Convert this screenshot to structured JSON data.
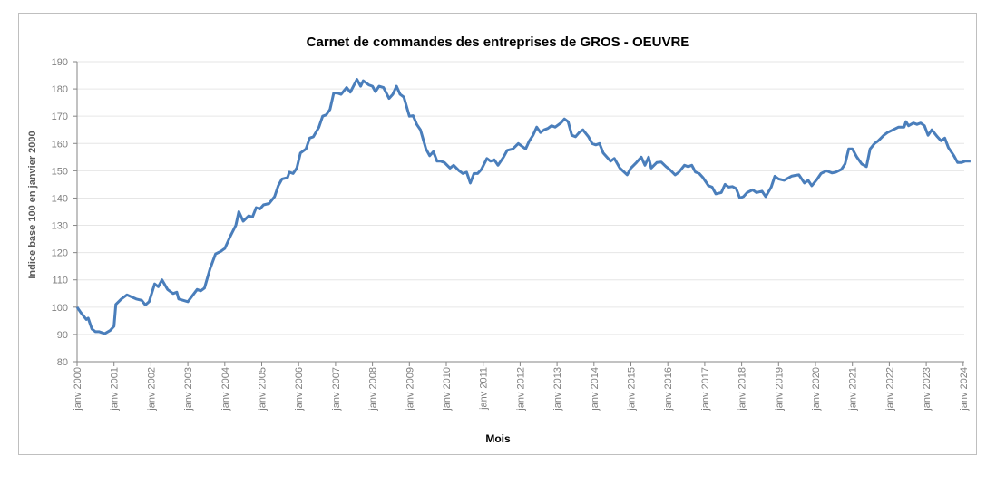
{
  "chart_data": {
    "type": "line",
    "title": "Carnet de commandes des entreprises de GROS - OEUVRE",
    "xlabel": "Mois",
    "ylabel": "Indice base 100 en janvier 2000",
    "ylim": [
      80,
      190
    ],
    "yticks": [
      80,
      90,
      100,
      110,
      120,
      130,
      140,
      150,
      160,
      170,
      180,
      190
    ],
    "xlim": [
      2000,
      2024.2
    ],
    "xtick_labels": [
      "janv 2000",
      "janv 2001",
      "janv 2002",
      "janv 2003",
      "janv 2004",
      "janv 2005",
      "janv 2006",
      "janv 2007",
      "janv 2008",
      "janv 2009",
      "janv 2010",
      "janv 2011",
      "janv 2012",
      "janv 2013",
      "janv 2014",
      "janv 2015",
      "janv 2016",
      "janv 2017",
      "janv 2018",
      "janv 2019",
      "janv 2020",
      "janv 2021",
      "janv 2022",
      "janv 2023",
      "janv 2024"
    ],
    "grid": true,
    "legend": "none",
    "color": "#4a7ebb",
    "series": [
      {
        "name": "Carnet de commandes",
        "points": [
          [
            2000.0,
            100
          ],
          [
            2000.1,
            98
          ],
          [
            2000.25,
            95.5
          ],
          [
            2000.3,
            96
          ],
          [
            2000.4,
            92
          ],
          [
            2000.5,
            91
          ],
          [
            2000.6,
            91
          ],
          [
            2000.75,
            90.3
          ],
          [
            2000.9,
            91.5
          ],
          [
            2001.0,
            93
          ],
          [
            2001.05,
            101
          ],
          [
            2001.2,
            103
          ],
          [
            2001.35,
            104.5
          ],
          [
            2001.6,
            103
          ],
          [
            2001.75,
            102.5
          ],
          [
            2001.85,
            100.8
          ],
          [
            2001.95,
            102
          ],
          [
            2002.1,
            108.5
          ],
          [
            2002.2,
            107.5
          ],
          [
            2002.3,
            110
          ],
          [
            2002.45,
            106.5
          ],
          [
            2002.6,
            105
          ],
          [
            2002.7,
            105.5
          ],
          [
            2002.75,
            103
          ],
          [
            2003.0,
            102
          ],
          [
            2003.25,
            106.5
          ],
          [
            2003.35,
            106
          ],
          [
            2003.45,
            107
          ],
          [
            2003.6,
            114
          ],
          [
            2003.75,
            119.5
          ],
          [
            2003.9,
            120.5
          ],
          [
            2004.0,
            121.5
          ],
          [
            2004.15,
            126
          ],
          [
            2004.3,
            130
          ],
          [
            2004.38,
            135
          ],
          [
            2004.5,
            131.5
          ],
          [
            2004.65,
            133.5
          ],
          [
            2004.75,
            133
          ],
          [
            2004.85,
            136.5
          ],
          [
            2004.95,
            136
          ],
          [
            2005.05,
            137.5
          ],
          [
            2005.2,
            138
          ],
          [
            2005.35,
            140.5
          ],
          [
            2005.45,
            144.5
          ],
          [
            2005.55,
            147
          ],
          [
            2005.7,
            147.5
          ],
          [
            2005.75,
            149.5
          ],
          [
            2005.85,
            149
          ],
          [
            2005.95,
            151
          ],
          [
            2006.05,
            156.5
          ],
          [
            2006.2,
            158
          ],
          [
            2006.3,
            162
          ],
          [
            2006.4,
            162.5
          ],
          [
            2006.55,
            166
          ],
          [
            2006.65,
            170
          ],
          [
            2006.75,
            170.5
          ],
          [
            2006.85,
            172.5
          ],
          [
            2006.95,
            178.5
          ],
          [
            2007.05,
            178.5
          ],
          [
            2007.15,
            178
          ],
          [
            2007.3,
            180.5
          ],
          [
            2007.4,
            178.8
          ],
          [
            2007.58,
            183.5
          ],
          [
            2007.68,
            181
          ],
          [
            2007.75,
            183
          ],
          [
            2007.9,
            181.5
          ],
          [
            2008.0,
            181
          ],
          [
            2008.08,
            179
          ],
          [
            2008.18,
            181
          ],
          [
            2008.3,
            180.5
          ],
          [
            2008.45,
            176.5
          ],
          [
            2008.55,
            178
          ],
          [
            2008.65,
            181
          ],
          [
            2008.75,
            178
          ],
          [
            2008.85,
            177
          ],
          [
            2009.0,
            170
          ],
          [
            2009.1,
            170.2
          ],
          [
            2009.2,
            167
          ],
          [
            2009.3,
            165
          ],
          [
            2009.45,
            158
          ],
          [
            2009.55,
            155.5
          ],
          [
            2009.65,
            157
          ],
          [
            2009.75,
            153.5
          ],
          [
            2009.85,
            153.5
          ],
          [
            2009.95,
            153
          ],
          [
            2010.1,
            151
          ],
          [
            2010.2,
            152
          ],
          [
            2010.35,
            150
          ],
          [
            2010.45,
            149
          ],
          [
            2010.55,
            149.5
          ],
          [
            2010.65,
            145.5
          ],
          [
            2010.75,
            149
          ],
          [
            2010.85,
            149
          ],
          [
            2010.95,
            150.5
          ],
          [
            2011.1,
            154.5
          ],
          [
            2011.2,
            153.5
          ],
          [
            2011.3,
            154
          ],
          [
            2011.4,
            152
          ],
          [
            2011.55,
            155
          ],
          [
            2011.65,
            157.5
          ],
          [
            2011.8,
            158
          ],
          [
            2011.95,
            160
          ],
          [
            2012.05,
            159
          ],
          [
            2012.15,
            158
          ],
          [
            2012.25,
            161
          ],
          [
            2012.35,
            163
          ],
          [
            2012.45,
            166
          ],
          [
            2012.55,
            164
          ],
          [
            2012.65,
            165
          ],
          [
            2012.75,
            165.5
          ],
          [
            2012.85,
            166.5
          ],
          [
            2012.95,
            166
          ],
          [
            2013.1,
            167.5
          ],
          [
            2013.2,
            169
          ],
          [
            2013.3,
            168
          ],
          [
            2013.4,
            163
          ],
          [
            2013.5,
            162.5
          ],
          [
            2013.6,
            164
          ],
          [
            2013.7,
            165
          ],
          [
            2013.85,
            162.5
          ],
          [
            2013.95,
            160
          ],
          [
            2014.05,
            159.5
          ],
          [
            2014.15,
            160
          ],
          [
            2014.25,
            156.5
          ],
          [
            2014.35,
            155
          ],
          [
            2014.45,
            153.5
          ],
          [
            2014.55,
            154.5
          ],
          [
            2014.7,
            151
          ],
          [
            2014.9,
            148.5
          ],
          [
            2015.0,
            151
          ],
          [
            2015.15,
            153
          ],
          [
            2015.28,
            155
          ],
          [
            2015.38,
            152
          ],
          [
            2015.48,
            155
          ],
          [
            2015.55,
            151
          ],
          [
            2015.7,
            153
          ],
          [
            2015.82,
            153.2
          ],
          [
            2015.95,
            151.5
          ],
          [
            2016.05,
            150.5
          ],
          [
            2016.2,
            148.5
          ],
          [
            2016.3,
            149.5
          ],
          [
            2016.45,
            152
          ],
          [
            2016.55,
            151.5
          ],
          [
            2016.65,
            152
          ],
          [
            2016.75,
            149.5
          ],
          [
            2016.85,
            149
          ],
          [
            2016.95,
            147.5
          ],
          [
            2017.1,
            144.5
          ],
          [
            2017.2,
            144
          ],
          [
            2017.3,
            141.5
          ],
          [
            2017.45,
            142
          ],
          [
            2017.55,
            145
          ],
          [
            2017.65,
            144
          ],
          [
            2017.75,
            144.2
          ],
          [
            2017.85,
            143.5
          ],
          [
            2017.95,
            140
          ],
          [
            2018.05,
            140.5
          ],
          [
            2018.15,
            142
          ],
          [
            2018.3,
            143
          ],
          [
            2018.4,
            142
          ],
          [
            2018.55,
            142.5
          ],
          [
            2018.65,
            140.5
          ],
          [
            2018.8,
            144
          ],
          [
            2018.9,
            148
          ],
          [
            2019.0,
            147
          ],
          [
            2019.15,
            146.5
          ],
          [
            2019.35,
            148
          ],
          [
            2019.45,
            148.3
          ],
          [
            2019.55,
            148.5
          ],
          [
            2019.7,
            145.5
          ],
          [
            2019.8,
            146.5
          ],
          [
            2019.9,
            144.5
          ],
          [
            2020.05,
            147
          ],
          [
            2020.15,
            149
          ],
          [
            2020.3,
            150
          ],
          [
            2020.45,
            149.2
          ],
          [
            2020.55,
            149.5
          ],
          [
            2020.7,
            150.5
          ],
          [
            2020.8,
            152.5
          ],
          [
            2020.9,
            158
          ],
          [
            2021.0,
            158
          ],
          [
            2021.12,
            155
          ],
          [
            2021.25,
            152.5
          ],
          [
            2021.38,
            151.5
          ],
          [
            2021.48,
            158
          ],
          [
            2021.6,
            160
          ],
          [
            2021.7,
            161
          ],
          [
            2021.85,
            163
          ],
          [
            2021.95,
            164
          ],
          [
            2022.1,
            165
          ],
          [
            2022.25,
            166
          ],
          [
            2022.4,
            166
          ],
          [
            2022.45,
            168
          ],
          [
            2022.52,
            166.5
          ],
          [
            2022.65,
            167.5
          ],
          [
            2022.75,
            167
          ],
          [
            2022.85,
            167.5
          ],
          [
            2022.95,
            166.5
          ],
          [
            2023.05,
            163
          ],
          [
            2023.15,
            165
          ],
          [
            2023.3,
            162.5
          ],
          [
            2023.4,
            161
          ],
          [
            2023.5,
            162
          ],
          [
            2023.6,
            158.5
          ],
          [
            2023.75,
            155.5
          ],
          [
            2023.85,
            153
          ],
          [
            2023.95,
            153
          ],
          [
            2024.05,
            153.5
          ],
          [
            2024.2,
            153.5
          ]
        ]
      }
    ]
  }
}
